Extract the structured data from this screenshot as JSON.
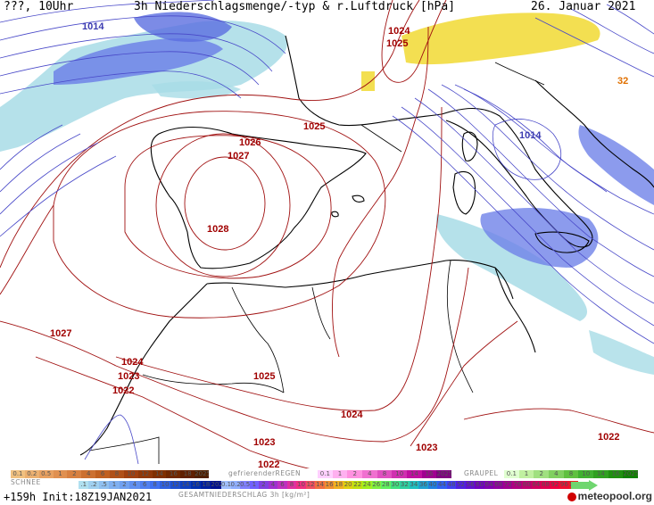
{
  "header": {
    "left": "???, 10Uhr",
    "title": "3h Niederschlagsmenge/-typ & r.Luftdruck [hPa]",
    "date": "26. Januar 2021"
  },
  "isobar_labels": [
    {
      "text": "1014",
      "color": "#3b3bb0"
    },
    {
      "text": "1024",
      "color": "#a00000"
    },
    {
      "text": "1025",
      "color": "#a00000"
    },
    {
      "text": "1025",
      "color": "#a00000"
    },
    {
      "text": "1026",
      "color": "#a00000"
    },
    {
      "text": "1027",
      "color": "#a00000"
    },
    {
      "text": "1028",
      "color": "#a00000"
    },
    {
      "text": "1014",
      "color": "#3b3bb0"
    },
    {
      "text": "1027",
      "color": "#a00000"
    },
    {
      "text": "1024",
      "color": "#a00000"
    },
    {
      "text": "1023",
      "color": "#a00000"
    },
    {
      "text": "1022",
      "color": "#a00000"
    },
    {
      "text": "1025",
      "color": "#a00000"
    },
    {
      "text": "1024",
      "color": "#a00000"
    },
    {
      "text": "1023",
      "color": "#a00000"
    },
    {
      "text": "1023",
      "color": "#a00000"
    },
    {
      "text": "1022",
      "color": "#a00000"
    },
    {
      "text": "1022",
      "color": "#a00000"
    },
    {
      "text": "32",
      "color": "#e07000"
    }
  ],
  "legend": {
    "snow_label": "SCHNEE",
    "freezing_rain_label": "gefrierenderREGEN",
    "graupel_label": "GRAUPEL",
    "total_label": "GESAMTNIEDERSCHLAG 3h [kg/m²]",
    "brown_scale": [
      "0.1",
      "0.2",
      "0.5",
      "1",
      "2",
      "4",
      "6",
      "8",
      "10",
      "12",
      "14",
      "16",
      "18",
      "2025+"
    ],
    "snow_scale": [
      ".1",
      ".2",
      ".5",
      "1",
      "2",
      "4",
      "6",
      "8",
      "10",
      "12",
      "14",
      "16",
      "18",
      "2025+"
    ],
    "freezing_scale": [
      "0.1",
      "1",
      "2",
      "4",
      "8",
      "10",
      "14",
      "16",
      "2025+"
    ],
    "graupel_scale": [
      "0.1",
      "1",
      "2",
      "4",
      "8",
      "10",
      "14",
      "16",
      "2025+"
    ],
    "total_scale": [
      "0.1",
      "0.2",
      "0.5",
      "1",
      "2",
      "4",
      "6",
      "8",
      "10",
      "12",
      "14",
      "16",
      "18",
      "20",
      "22",
      "24",
      "26",
      "28",
      "30",
      "32",
      "34",
      "36",
      "40",
      "44",
      "48",
      "52",
      "56",
      "60",
      "64",
      "68",
      "72",
      "76",
      "80",
      "84",
      "88",
      "92",
      "96",
      "100"
    ]
  },
  "footer": {
    "forecast": "+159h Init:18Z19JAN2021",
    "logo": "meteopool.org"
  },
  "colors": {
    "isobar_high": "#a01010",
    "isobar_low": "#4040c0",
    "rain": "#9fd9e0",
    "snow": "#6b7be8",
    "graupel": "#f5e04a"
  }
}
